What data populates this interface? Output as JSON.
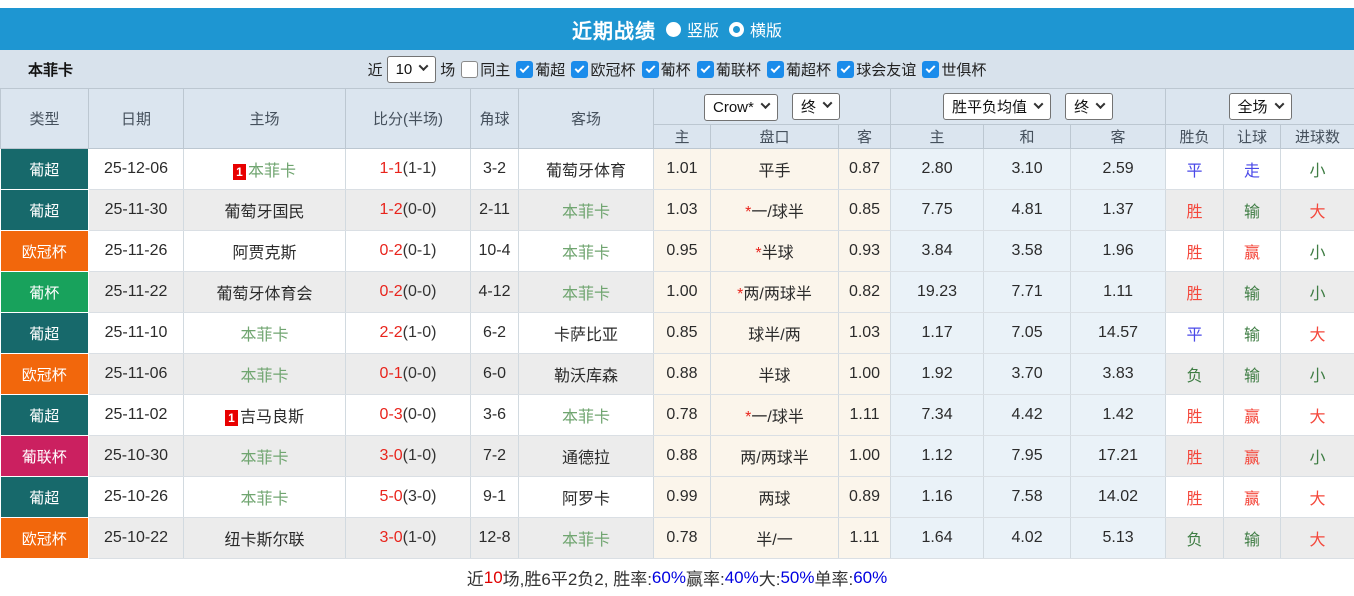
{
  "colors": {
    "topbar": "#1e96d2",
    "checkbox_blue": "#1b8ceb",
    "league": {
      "葡超": "#17696b",
      "欧冠杯": "#f2670c",
      "葡杯": "#18a25c",
      "葡联杯": "#cb2060"
    },
    "score_red": "#e8241c",
    "team_green": "#70a570",
    "result_red": "#f4483c",
    "result_green": "#3f7d44",
    "result_blue": "#4a49e8",
    "footer_blue": "#0000e0",
    "footer_red": "#e00000"
  },
  "title_bar": {
    "title": "近期战绩",
    "layout_options": [
      {
        "label": "竖版",
        "selected": true
      },
      {
        "label": "横版",
        "selected": false
      }
    ]
  },
  "filter_bar": {
    "team_name": "本菲卡",
    "recent_label": "近",
    "recent_count": "10",
    "matches_label": "场",
    "same_home": {
      "label": "同主",
      "checked": false
    },
    "leagues": [
      {
        "label": "葡超",
        "checked": true
      },
      {
        "label": "欧冠杯",
        "checked": true
      },
      {
        "label": "葡杯",
        "checked": true
      },
      {
        "label": "葡联杯",
        "checked": true
      },
      {
        "label": "葡超杯",
        "checked": true
      },
      {
        "label": "球会友谊",
        "checked": true
      },
      {
        "label": "世俱杯",
        "checked": true
      }
    ]
  },
  "table": {
    "headers": {
      "type": "类型",
      "date": "日期",
      "home": "主场",
      "score": "比分(半场)",
      "corners": "角球",
      "away": "客场",
      "odds_select": "Crow*",
      "odds_state_select": "终",
      "odds_sub": [
        "主",
        "盘口",
        "客"
      ],
      "avg_select": "胜平负均值",
      "avg_state_select": "终",
      "avg_sub": [
        "主",
        "和",
        "客"
      ],
      "result_select": "全场",
      "result_sub": [
        "胜负",
        "让球",
        "进球数"
      ]
    },
    "rows": [
      {
        "league": "葡超",
        "date": "25-12-06",
        "home": "本菲卡",
        "home_card": "1",
        "home_self": true,
        "score_ft": "1-1",
        "score_ht": "(1-1)",
        "corners": "3-2",
        "away": "葡萄牙体育",
        "away_self": false,
        "odds_home": "1.01",
        "handicap_star": "",
        "handicap": "平手",
        "odds_away": "0.87",
        "avg_home": "2.80",
        "avg_draw": "3.10",
        "avg_away": "2.59",
        "result_wdl": "平",
        "result_wdl_color": "blue",
        "result_handicap": "走",
        "result_handicap_color": "blue",
        "result_goals": "小",
        "result_goals_color": "green"
      },
      {
        "league": "葡超",
        "date": "25-11-30",
        "home": "葡萄牙国民",
        "home_card": "",
        "home_self": false,
        "score_ft": "1-2",
        "score_ht": "(0-0)",
        "corners": "2-11",
        "away": "本菲卡",
        "away_self": true,
        "odds_home": "1.03",
        "handicap_star": "*",
        "handicap": "一/球半",
        "odds_away": "0.85",
        "avg_home": "7.75",
        "avg_draw": "4.81",
        "avg_away": "1.37",
        "result_wdl": "胜",
        "result_wdl_color": "red",
        "result_handicap": "输",
        "result_handicap_color": "green",
        "result_goals": "大",
        "result_goals_color": "red"
      },
      {
        "league": "欧冠杯",
        "date": "25-11-26",
        "home": "阿贾克斯",
        "home_card": "",
        "home_self": false,
        "score_ft": "0-2",
        "score_ht": "(0-1)",
        "corners": "10-4",
        "away": "本菲卡",
        "away_self": true,
        "odds_home": "0.95",
        "handicap_star": "*",
        "handicap": "半球",
        "odds_away": "0.93",
        "avg_home": "3.84",
        "avg_draw": "3.58",
        "avg_away": "1.96",
        "result_wdl": "胜",
        "result_wdl_color": "red",
        "result_handicap": "赢",
        "result_handicap_color": "red",
        "result_goals": "小",
        "result_goals_color": "green"
      },
      {
        "league": "葡杯",
        "date": "25-11-22",
        "home": "葡萄牙体育会",
        "home_card": "",
        "home_self": false,
        "score_ft": "0-2",
        "score_ht": "(0-0)",
        "corners": "4-12",
        "away": "本菲卡",
        "away_self": true,
        "odds_home": "1.00",
        "handicap_star": "*",
        "handicap": "两/两球半",
        "odds_away": "0.82",
        "avg_home": "19.23",
        "avg_draw": "7.71",
        "avg_away": "1.11",
        "result_wdl": "胜",
        "result_wdl_color": "red",
        "result_handicap": "输",
        "result_handicap_color": "green",
        "result_goals": "小",
        "result_goals_color": "green"
      },
      {
        "league": "葡超",
        "date": "25-11-10",
        "home": "本菲卡",
        "home_card": "",
        "home_self": true,
        "score_ft": "2-2",
        "score_ht": "(1-0)",
        "corners": "6-2",
        "away": "卡萨比亚",
        "away_self": false,
        "odds_home": "0.85",
        "handicap_star": "",
        "handicap": "球半/两",
        "odds_away": "1.03",
        "avg_home": "1.17",
        "avg_draw": "7.05",
        "avg_away": "14.57",
        "result_wdl": "平",
        "result_wdl_color": "blue",
        "result_handicap": "输",
        "result_handicap_color": "green",
        "result_goals": "大",
        "result_goals_color": "red"
      },
      {
        "league": "欧冠杯",
        "date": "25-11-06",
        "home": "本菲卡",
        "home_card": "",
        "home_self": true,
        "score_ft": "0-1",
        "score_ht": "(0-0)",
        "corners": "6-0",
        "away": "勒沃库森",
        "away_self": false,
        "odds_home": "0.88",
        "handicap_star": "",
        "handicap": "半球",
        "odds_away": "1.00",
        "avg_home": "1.92",
        "avg_draw": "3.70",
        "avg_away": "3.83",
        "result_wdl": "负",
        "result_wdl_color": "green",
        "result_handicap": "输",
        "result_handicap_color": "green",
        "result_goals": "小",
        "result_goals_color": "green"
      },
      {
        "league": "葡超",
        "date": "25-11-02",
        "home": "吉马良斯",
        "home_card": "1",
        "home_self": false,
        "score_ft": "0-3",
        "score_ht": "(0-0)",
        "corners": "3-6",
        "away": "本菲卡",
        "away_self": true,
        "odds_home": "0.78",
        "handicap_star": "*",
        "handicap": "一/球半",
        "odds_away": "1.11",
        "avg_home": "7.34",
        "avg_draw": "4.42",
        "avg_away": "1.42",
        "result_wdl": "胜",
        "result_wdl_color": "red",
        "result_handicap": "赢",
        "result_handicap_color": "red",
        "result_goals": "大",
        "result_goals_color": "red"
      },
      {
        "league": "葡联杯",
        "date": "25-10-30",
        "home": "本菲卡",
        "home_card": "",
        "home_self": true,
        "score_ft": "3-0",
        "score_ht": "(1-0)",
        "corners": "7-2",
        "away": "通德拉",
        "away_self": false,
        "odds_home": "0.88",
        "handicap_star": "",
        "handicap": "两/两球半",
        "odds_away": "1.00",
        "avg_home": "1.12",
        "avg_draw": "7.95",
        "avg_away": "17.21",
        "result_wdl": "胜",
        "result_wdl_color": "red",
        "result_handicap": "赢",
        "result_handicap_color": "red",
        "result_goals": "小",
        "result_goals_color": "green"
      },
      {
        "league": "葡超",
        "date": "25-10-26",
        "home": "本菲卡",
        "home_card": "",
        "home_self": true,
        "score_ft": "5-0",
        "score_ht": "(3-0)",
        "corners": "9-1",
        "away": "阿罗卡",
        "away_self": false,
        "odds_home": "0.99",
        "handicap_star": "",
        "handicap": "两球",
        "odds_away": "0.89",
        "avg_home": "1.16",
        "avg_draw": "7.58",
        "avg_away": "14.02",
        "result_wdl": "胜",
        "result_wdl_color": "red",
        "result_handicap": "赢",
        "result_handicap_color": "red",
        "result_goals": "大",
        "result_goals_color": "red"
      },
      {
        "league": "欧冠杯",
        "date": "25-10-22",
        "home": "纽卡斯尔联",
        "home_card": "",
        "home_self": false,
        "score_ft": "3-0",
        "score_ht": "(1-0)",
        "corners": "12-8",
        "away": "本菲卡",
        "away_self": true,
        "odds_home": "0.78",
        "handicap_star": "",
        "handicap": "半/一",
        "odds_away": "1.11",
        "avg_home": "1.64",
        "avg_draw": "4.02",
        "avg_away": "5.13",
        "result_wdl": "负",
        "result_wdl_color": "green",
        "result_handicap": "输",
        "result_handicap_color": "green",
        "result_goals": "大",
        "result_goals_color": "red"
      }
    ]
  },
  "footer": {
    "segments": [
      {
        "text": "近",
        "color": "dark"
      },
      {
        "text": "10",
        "color": "red"
      },
      {
        "text": "场,胜6平2负2, 胜率:",
        "color": "dark"
      },
      {
        "text": "60%",
        "color": "blue"
      },
      {
        "text": " 赢率:",
        "color": "dark"
      },
      {
        "text": "40%",
        "color": "blue"
      },
      {
        "text": " 大:",
        "color": "dark"
      },
      {
        "text": "50%",
        "color": "blue"
      },
      {
        "text": " 单率:",
        "color": "dark"
      },
      {
        "text": "60%",
        "color": "blue"
      }
    ]
  }
}
